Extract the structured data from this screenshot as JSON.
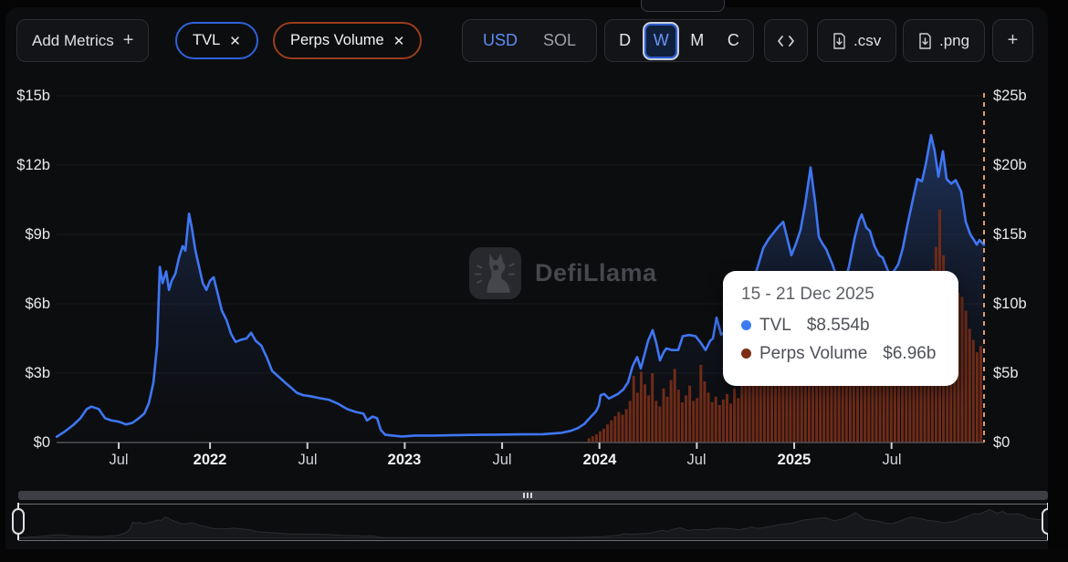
{
  "toolbar": {
    "add_metrics": {
      "label": "Add Metrics",
      "plus": "+"
    },
    "metric_pills": [
      {
        "label": "TVL",
        "close": "✕",
        "color": "#2f62d8"
      },
      {
        "label": "Perps Volume",
        "close": "✕",
        "color": "#9a3d1d"
      }
    ],
    "currency_toggle": {
      "options": [
        "USD",
        "SOL"
      ],
      "selected": "USD"
    },
    "interval_toggle": {
      "options": [
        "D",
        "W",
        "M",
        "C"
      ],
      "selected": "W"
    },
    "export_buttons": {
      "csv": ".csv",
      "png": ".png"
    },
    "add_chart_label": "+"
  },
  "watermark": {
    "text": "DefiLlama"
  },
  "tooltip": {
    "title": "15 - 21 Dec 2025",
    "rows": [
      {
        "label": "TVL",
        "value": "$8.554b",
        "color": "#3b7bf0"
      },
      {
        "label": "Perps Volume",
        "value": "$6.96b",
        "color": "#7e2d17"
      }
    ]
  },
  "chart_data": {
    "type": "mixed",
    "title": "",
    "x_format": "decimal_year",
    "x_axis": {
      "range": [
        2021.212,
        2025.975
      ],
      "ticks": [
        {
          "t": 2021.531,
          "label": "Jul"
        },
        {
          "t": 2022.0,
          "label": "2022",
          "bold": true
        },
        {
          "t": 2022.5,
          "label": "Jul"
        },
        {
          "t": 2023.0,
          "label": "2023",
          "bold": true
        },
        {
          "t": 2023.5,
          "label": "Jul"
        },
        {
          "t": 2024.0,
          "label": "2024",
          "bold": true
        },
        {
          "t": 2024.5,
          "label": "Jul"
        },
        {
          "t": 2025.0,
          "label": "2025",
          "bold": true
        },
        {
          "t": 2025.5,
          "label": "Jul"
        }
      ]
    },
    "left_axis": {
      "range": [
        0,
        15
      ],
      "ticks": [
        "$0",
        "$3b",
        "$6b",
        "$9b",
        "$12b",
        "$15b"
      ]
    },
    "right_axis": {
      "range": [
        0,
        25
      ],
      "ticks": [
        "$0",
        "$5b",
        "$10b",
        "$15b",
        "$20b",
        "$25b"
      ]
    },
    "hover": {
      "t": 2025.975,
      "label": "15 - 21 Dec 2025",
      "tvl": 8.554,
      "perps_volume": 6.96
    },
    "series": [
      {
        "name": "TVL",
        "type": "line",
        "axis": "left",
        "unit": "$b",
        "color": "#3f76f3",
        "points": [
          [
            2021.2124,
            0.25
          ],
          [
            2021.2499,
            0.45
          ],
          [
            2021.2968,
            0.75
          ],
          [
            2021.3343,
            1.05
          ],
          [
            2021.3671,
            1.45
          ],
          [
            2021.3906,
            1.55
          ],
          [
            2021.4281,
            1.45
          ],
          [
            2021.4609,
            1.05
          ],
          [
            2021.4937,
            0.95
          ],
          [
            2021.5312,
            0.9
          ],
          [
            2021.5687,
            0.78
          ],
          [
            2021.6016,
            0.85
          ],
          [
            2021.6344,
            1.05
          ],
          [
            2021.6625,
            1.25
          ],
          [
            2021.6859,
            1.7
          ],
          [
            2021.7094,
            2.6
          ],
          [
            2021.7281,
            4.2
          ],
          [
            2021.7422,
            7.6
          ],
          [
            2021.7562,
            6.9
          ],
          [
            2021.775,
            7.4
          ],
          [
            2021.789,
            6.6
          ],
          [
            2021.8031,
            7.0
          ],
          [
            2021.8219,
            7.3
          ],
          [
            2021.8406,
            8.0
          ],
          [
            2021.8594,
            8.5
          ],
          [
            2021.8734,
            8.3
          ],
          [
            2021.8922,
            9.9
          ],
          [
            2021.9062,
            9.3
          ],
          [
            2021.925,
            8.3
          ],
          [
            2021.9437,
            7.6
          ],
          [
            2021.9625,
            6.9
          ],
          [
            2021.9812,
            6.6
          ],
          [
            2022.0,
            7.0
          ],
          [
            2022.0188,
            7.15
          ],
          [
            2022.0375,
            6.5
          ],
          [
            2022.0609,
            5.7
          ],
          [
            2022.0844,
            5.3
          ],
          [
            2022.1078,
            4.7
          ],
          [
            2022.1312,
            4.35
          ],
          [
            2022.1594,
            4.45
          ],
          [
            2022.1875,
            4.5
          ],
          [
            2022.2109,
            4.75
          ],
          [
            2022.2344,
            4.4
          ],
          [
            2022.2625,
            4.2
          ],
          [
            2022.2906,
            3.7
          ],
          [
            2022.3187,
            3.1
          ],
          [
            2022.3516,
            2.85
          ],
          [
            2022.3844,
            2.6
          ],
          [
            2022.4125,
            2.4
          ],
          [
            2022.4453,
            2.15
          ],
          [
            2022.4781,
            2.05
          ],
          [
            2022.5156,
            2.0
          ],
          [
            2022.5625,
            1.92
          ],
          [
            2022.6094,
            1.85
          ],
          [
            2022.6562,
            1.68
          ],
          [
            2022.7031,
            1.45
          ],
          [
            2022.75,
            1.32
          ],
          [
            2022.7875,
            1.25
          ],
          [
            2022.8062,
            0.95
          ],
          [
            2022.8344,
            1.12
          ],
          [
            2022.8578,
            1.05
          ],
          [
            2022.8766,
            0.55
          ],
          [
            2022.9,
            0.33
          ],
          [
            2022.9375,
            0.3
          ],
          [
            2022.9844,
            0.26
          ],
          [
            2023.0547,
            0.3
          ],
          [
            2023.1484,
            0.3
          ],
          [
            2023.2656,
            0.32
          ],
          [
            2023.3828,
            0.33
          ],
          [
            2023.4766,
            0.34
          ],
          [
            2023.5937,
            0.35
          ],
          [
            2023.7109,
            0.36
          ],
          [
            2023.8047,
            0.42
          ],
          [
            2023.8516,
            0.5
          ],
          [
            2023.889,
            0.62
          ],
          [
            2023.9219,
            0.8
          ],
          [
            2023.9547,
            1.1
          ],
          [
            2023.9828,
            1.35
          ],
          [
            2023.9969,
            1.6
          ],
          [
            2024.0062,
            2.05
          ],
          [
            2024.025,
            2.1
          ],
          [
            2024.0484,
            1.9
          ],
          [
            2024.0719,
            2.0
          ],
          [
            2024.0953,
            2.1
          ],
          [
            2024.1234,
            2.3
          ],
          [
            2024.1469,
            2.6
          ],
          [
            2024.1703,
            3.3
          ],
          [
            2024.1937,
            3.7
          ],
          [
            2024.2125,
            3.2
          ],
          [
            2024.2312,
            3.8
          ],
          [
            2024.25,
            4.4
          ],
          [
            2024.2734,
            4.86
          ],
          [
            2024.2922,
            4.3
          ],
          [
            2024.3109,
            3.55
          ],
          [
            2024.3297,
            3.9
          ],
          [
            2024.3437,
            4.07
          ],
          [
            2024.3719,
            4.0
          ],
          [
            2024.4047,
            4.0
          ],
          [
            2024.4281,
            4.6
          ],
          [
            2024.4609,
            4.65
          ],
          [
            2024.4937,
            4.6
          ],
          [
            2024.5172,
            4.35
          ],
          [
            2024.5453,
            4.0
          ],
          [
            2024.5687,
            4.4
          ],
          [
            2024.5828,
            4.5
          ],
          [
            2024.6016,
            5.4
          ],
          [
            2024.625,
            4.67
          ],
          [
            2024.6484,
            4.8
          ],
          [
            2024.6719,
            5.2
          ],
          [
            2024.7,
            5.6
          ],
          [
            2024.7281,
            6.3
          ],
          [
            2024.7562,
            6.6
          ],
          [
            2024.7844,
            6.9
          ],
          [
            2024.8125,
            7.6
          ],
          [
            2024.8406,
            8.4
          ],
          [
            2024.8687,
            8.8
          ],
          [
            2024.8969,
            9.1
          ],
          [
            2024.9156,
            9.3
          ],
          [
            2024.9437,
            9.55
          ],
          [
            2024.9625,
            8.9
          ],
          [
            2024.9859,
            8.1
          ],
          [
            2025.0094,
            8.6
          ],
          [
            2025.0328,
            9.2
          ],
          [
            2025.0562,
            10.3
          ],
          [
            2025.0844,
            11.9
          ],
          [
            2025.1078,
            10.4
          ],
          [
            2025.1266,
            8.9
          ],
          [
            2025.1453,
            8.6
          ],
          [
            2025.1641,
            8.37
          ],
          [
            2025.1969,
            7.7
          ],
          [
            2025.225,
            7.0
          ],
          [
            2025.2531,
            6.8
          ],
          [
            2025.2812,
            7.6
          ],
          [
            2025.3094,
            8.8
          ],
          [
            2025.3328,
            9.6
          ],
          [
            2025.3469,
            9.87
          ],
          [
            2025.3703,
            9.3
          ],
          [
            2025.389,
            9.15
          ],
          [
            2025.4125,
            8.5
          ],
          [
            2025.4359,
            8.1
          ],
          [
            2025.4547,
            8.0
          ],
          [
            2025.4734,
            7.6
          ],
          [
            2025.4922,
            7.2
          ],
          [
            2025.5109,
            7.4
          ],
          [
            2025.5344,
            7.7
          ],
          [
            2025.5578,
            8.4
          ],
          [
            2025.5812,
            9.4
          ],
          [
            2025.6094,
            10.5
          ],
          [
            2025.6328,
            11.4
          ],
          [
            2025.6562,
            11.3
          ],
          [
            2025.675,
            12.0
          ],
          [
            2025.7031,
            13.3
          ],
          [
            2025.7219,
            12.6
          ],
          [
            2025.7406,
            11.5
          ],
          [
            2025.7641,
            12.6
          ],
          [
            2025.7828,
            11.4
          ],
          [
            2025.8062,
            11.2
          ],
          [
            2025.8297,
            11.35
          ],
          [
            2025.8437,
            11.1
          ],
          [
            2025.8578,
            10.85
          ],
          [
            2025.8812,
            9.55
          ],
          [
            2025.9047,
            9.0
          ],
          [
            2025.9234,
            8.76
          ],
          [
            2025.9375,
            8.56
          ],
          [
            2025.9516,
            8.76
          ],
          [
            2025.975,
            8.554
          ]
        ]
      },
      {
        "name": "Perps Volume",
        "type": "bar",
        "axis": "right",
        "unit": "$b",
        "color": "#6f2b18",
        "week_start": 2023.946,
        "week_step": 0.019165,
        "values": [
          0.3,
          0.45,
          0.6,
          0.8,
          1.0,
          1.3,
          1.6,
          1.9,
          2.2,
          2.0,
          2.4,
          3.0,
          4.8,
          3.6,
          5.1,
          4.2,
          3.4,
          5.0,
          3.0,
          2.6,
          3.9,
          3.3,
          4.5,
          5.3,
          3.8,
          2.9,
          3.4,
          4.1,
          3.0,
          3.2,
          5.6,
          4.4,
          3.6,
          2.9,
          3.3,
          2.7,
          3.1,
          3.5,
          2.8,
          3.9,
          3.2,
          4.5,
          5.2,
          4.3,
          6.0,
          6.8,
          5.5,
          7.2,
          6.1,
          5.0,
          5.8,
          6.4,
          7.5,
          8.2,
          7.8,
          8.5,
          7.2,
          6.5,
          7.0,
          8.8,
          9.5,
          8.0,
          7.4,
          6.8,
          6.2,
          5.8,
          6.5,
          7.2,
          6.0,
          5.5,
          5.0,
          5.6,
          6.3,
          5.8,
          5.2,
          4.8,
          5.4,
          6.1,
          6.5,
          7.0,
          7.8,
          8.4,
          7.6,
          8.9,
          9.6,
          10.2,
          9.0,
          8.4,
          9.3,
          10.0,
          10.8,
          11.5,
          12.5,
          14.1,
          16.8,
          13.5,
          12.2,
          11.5,
          12.0,
          10.8,
          10.5,
          9.5,
          8.2,
          7.4,
          6.5,
          6.96
        ]
      }
    ]
  }
}
